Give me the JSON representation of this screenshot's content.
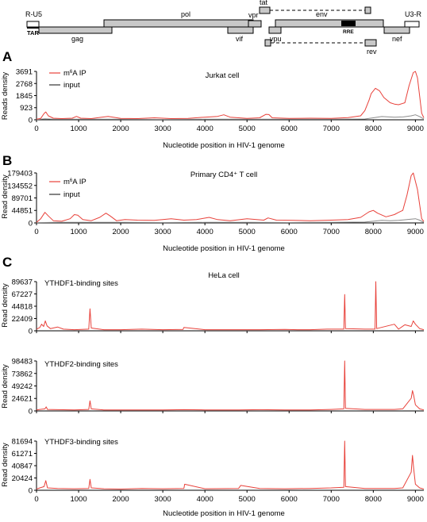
{
  "colors": {
    "ip": "#e8413a",
    "input": "#8c8c8c",
    "gene_fill": "#c8c8c8",
    "rre_fill": "#000000"
  },
  "genome_map": {
    "labels": {
      "r_u5": "R-U5",
      "tar": "TAR",
      "gag": "gag",
      "pol": "pol",
      "vif": "vif",
      "vpr": "vpr",
      "tat": "tat",
      "vpu": "vpu",
      "env": "env",
      "rre": "RRE",
      "rev": "rev",
      "nef": "nef",
      "u3_r": "U3-R"
    }
  },
  "panels": {
    "a": {
      "letter": "A",
      "title": "Jurkat cell"
    },
    "b": {
      "letter": "B",
      "title": "Primary CD4⁺ T cell"
    },
    "c": {
      "letter": "C",
      "title": "HeLa cell",
      "sub1": "YTHDF1-binding sites",
      "sub2": "YTHDF2-binding sites",
      "sub3": "YTHDF3-binding sites"
    }
  },
  "legend": {
    "ip_prefix": "m",
    "ip_sup": "6",
    "ip_suffix": "A IP",
    "input": "input"
  },
  "axis": {
    "xlabel": "Nucleotide position in HIV-1 genome",
    "ylabel_a": "Reads density",
    "ylabel_b": "Read density",
    "ylabel_c": "Read density"
  },
  "chart_data": [
    {
      "type": "line",
      "title": "Jurkat cell",
      "xlabel": "Nucleotide position in HIV-1 genome",
      "ylabel": "Reads density",
      "xlim": [
        0,
        9200
      ],
      "ylim": [
        0,
        3691
      ],
      "xticks": [
        0,
        1000,
        2000,
        3000,
        4000,
        5000,
        6000,
        7000,
        8000,
        9000
      ],
      "yticks": [
        0,
        923,
        1845,
        2768,
        3691
      ],
      "legend": "top-left",
      "series": [
        {
          "name": "m6A IP",
          "color": "#e8413a",
          "x": [
            0,
            100,
            180,
            220,
            280,
            400,
            600,
            850,
            950,
            1050,
            1300,
            1700,
            2000,
            2400,
            2800,
            3200,
            3600,
            4000,
            4300,
            4450,
            4600,
            5000,
            5300,
            5450,
            5520,
            5600,
            6000,
            6500,
            7000,
            7400,
            7700,
            7800,
            7900,
            7950,
            8050,
            8150,
            8250,
            8400,
            8500,
            8600,
            8750,
            8850,
            8950,
            9000,
            9050,
            9150,
            9200
          ],
          "y": [
            40,
            100,
            480,
            600,
            300,
            120,
            90,
            120,
            260,
            120,
            90,
            260,
            100,
            90,
            150,
            90,
            110,
            200,
            260,
            380,
            200,
            110,
            150,
            420,
            400,
            150,
            110,
            120,
            100,
            170,
            300,
            700,
            1500,
            2000,
            2400,
            2200,
            1700,
            1300,
            1200,
            1150,
            1300,
            2600,
            3600,
            3691,
            3200,
            500,
            150
          ]
        },
        {
          "name": "input",
          "color": "#8c8c8c",
          "x": [
            0,
            200,
            400,
            1000,
            2000,
            3000,
            4000,
            5000,
            6000,
            7000,
            7800,
            8000,
            8200,
            8500,
            8700,
            8900,
            9000,
            9100,
            9200
          ],
          "y": [
            20,
            80,
            40,
            50,
            40,
            30,
            40,
            40,
            40,
            40,
            60,
            150,
            250,
            200,
            220,
            300,
            380,
            250,
            60
          ]
        }
      ]
    },
    {
      "type": "line",
      "title": "Primary CD4⁺ T cell",
      "xlabel": "Nucleotide position in HIV-1 genome",
      "ylabel": "Read density",
      "xlim": [
        0,
        9200
      ],
      "ylim": [
        0,
        179403
      ],
      "xticks": [
        0,
        1000,
        2000,
        3000,
        4000,
        5000,
        6000,
        7000,
        8000,
        9000
      ],
      "yticks": [
        0,
        44851,
        89701,
        134552,
        179403
      ],
      "legend": "top-left",
      "series": [
        {
          "name": "m6A IP",
          "color": "#e8413a",
          "x": [
            0,
            100,
            200,
            280,
            400,
            600,
            800,
            900,
            980,
            1100,
            1300,
            1500,
            1650,
            1750,
            1900,
            2100,
            2400,
            2800,
            3200,
            3500,
            3800,
            4100,
            4300,
            4600,
            5000,
            5400,
            5500,
            5700,
            6100,
            6500,
            7000,
            7400,
            7700,
            7800,
            7900,
            8000,
            8100,
            8300,
            8500,
            8600,
            8700,
            8800,
            8900,
            8950,
            9050,
            9150,
            9200
          ],
          "y": [
            2000,
            15000,
            38000,
            25000,
            8000,
            6000,
            15000,
            30000,
            28000,
            12000,
            8000,
            20000,
            35000,
            25000,
            8000,
            12000,
            10000,
            9000,
            15000,
            10000,
            12000,
            20000,
            12000,
            8000,
            15000,
            10000,
            18000,
            10000,
            9000,
            8000,
            10000,
            12000,
            20000,
            30000,
            40000,
            45000,
            35000,
            22000,
            30000,
            38000,
            45000,
            100000,
            170000,
            179403,
            120000,
            15000,
            5000
          ]
        },
        {
          "name": "input",
          "color": "#8c8c8c",
          "x": [
            0,
            500,
            1000,
            2000,
            3000,
            4000,
            5000,
            6000,
            7000,
            7800,
            8000,
            8200,
            8400,
            8600,
            8800,
            9000,
            9100,
            9200
          ],
          "y": [
            1000,
            2000,
            2000,
            2000,
            1500,
            2000,
            2000,
            1500,
            2000,
            3000,
            6000,
            9000,
            8000,
            9000,
            12000,
            15000,
            10000,
            2000
          ]
        }
      ]
    },
    {
      "type": "line",
      "title": "YTHDF1-binding sites",
      "xlabel": "",
      "ylabel": "Read density",
      "xlim": [
        0,
        9200
      ],
      "ylim": [
        0,
        89637
      ],
      "yticks": [
        0,
        22409,
        44818,
        67227,
        89637
      ],
      "series": [
        {
          "name": "",
          "color": "#e8413a",
          "x": [
            0,
            80,
            120,
            170,
            210,
            250,
            330,
            500,
            640,
            900,
            1240,
            1270,
            1300,
            1600,
            2000,
            2500,
            3000,
            3480,
            3500,
            4000,
            4800,
            5300,
            5900,
            6200,
            6500,
            6900,
            7300,
            7320,
            7340,
            7800,
            8040,
            8060,
            8080,
            8500,
            8600,
            8750,
            8900,
            8950,
            9000,
            9100,
            9200
          ],
          "y": [
            3000,
            6000,
            12000,
            8000,
            18000,
            9000,
            4000,
            7000,
            3000,
            2000,
            3000,
            40000,
            5000,
            2000,
            2000,
            3000,
            2000,
            2500,
            6000,
            2000,
            2000,
            2000,
            2500,
            2000,
            2000,
            3000,
            3000,
            66000,
            4000,
            3000,
            3000,
            89637,
            4000,
            12000,
            3000,
            11000,
            8000,
            18000,
            12000,
            4000,
            2000
          ]
        }
      ]
    },
    {
      "type": "line",
      "title": "YTHDF2-binding sites",
      "xlabel": "",
      "ylabel": "Read density",
      "xlim": [
        0,
        9200
      ],
      "ylim": [
        0,
        98483
      ],
      "yticks": [
        0,
        24621,
        49242,
        73862,
        98483
      ],
      "series": [
        {
          "name": "",
          "color": "#e8413a",
          "x": [
            0,
            80,
            200,
            230,
            260,
            500,
            900,
            1240,
            1270,
            1300,
            1600,
            2000,
            2500,
            3000,
            3500,
            4000,
            4800,
            5300,
            5900,
            6500,
            7000,
            7300,
            7320,
            7340,
            7800,
            8050,
            8500,
            8700,
            8900,
            8930,
            8960,
            9000,
            9100,
            9200
          ],
          "y": [
            2000,
            3000,
            4000,
            8000,
            3000,
            2500,
            2000,
            3000,
            20000,
            4000,
            2000,
            2000,
            2000,
            2000,
            2500,
            2000,
            2000,
            2500,
            2000,
            2000,
            3000,
            4000,
            98483,
            5000,
            3000,
            3000,
            3000,
            4000,
            25000,
            40000,
            30000,
            12000,
            4000,
            2000
          ]
        }
      ]
    },
    {
      "type": "line",
      "title": "YTHDF3-binding sites",
      "xlabel": "Nucleotide position in HIV-1 genome",
      "ylabel": "Read density",
      "xlim": [
        0,
        9200
      ],
      "ylim": [
        0,
        81694
      ],
      "xticks": [
        0,
        1000,
        2000,
        3000,
        4000,
        5000,
        6000,
        7000,
        8000,
        9000
      ],
      "yticks": [
        0,
        20424,
        40847,
        61271,
        81694
      ],
      "series": [
        {
          "name": "",
          "color": "#e8413a",
          "x": [
            0,
            80,
            180,
            220,
            260,
            500,
            900,
            1240,
            1270,
            1300,
            1600,
            2000,
            2500,
            3000,
            3500,
            3520,
            4000,
            4800,
            4850,
            5300,
            5900,
            6500,
            7000,
            7300,
            7320,
            7340,
            7800,
            8050,
            8500,
            8700,
            8900,
            8930,
            8960,
            9000,
            9100,
            9200
          ],
          "y": [
            2000,
            4000,
            6000,
            16000,
            4000,
            3000,
            2500,
            3000,
            18000,
            4000,
            2500,
            2000,
            3000,
            2500,
            3000,
            10000,
            2500,
            3000,
            8000,
            3000,
            2500,
            3000,
            4000,
            5000,
            81694,
            6000,
            3000,
            3000,
            3000,
            4000,
            30000,
            58000,
            35000,
            10000,
            4000,
            2000
          ]
        }
      ]
    }
  ]
}
